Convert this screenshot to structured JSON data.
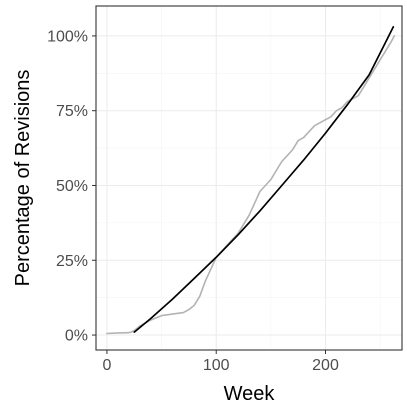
{
  "chart_data": {
    "type": "line",
    "title": "",
    "xlabel": "Week",
    "ylabel": "Percentage of Revisions",
    "xlim": [
      -10,
      270
    ],
    "ylim": [
      -0.05,
      1.1
    ],
    "x_ticks": [
      0,
      100,
      200
    ],
    "x_tick_labels": [
      "0",
      "100",
      "200"
    ],
    "y_ticks": [
      0,
      0.25,
      0.5,
      0.75,
      1.0
    ],
    "y_tick_labels": [
      "0%",
      "25%",
      "50%",
      "75%",
      "100%"
    ],
    "grid": true,
    "legend": "none",
    "colors": {
      "observed": "#b3b3b3",
      "fit": "#000000",
      "grid": "#ebebeb",
      "panel_border": "#333333"
    },
    "series": [
      {
        "role": "observed",
        "x": [
          0,
          10,
          20,
          22,
          25,
          30,
          40,
          50,
          60,
          70,
          75,
          80,
          85,
          88,
          90,
          95,
          100,
          105,
          110,
          115,
          120,
          125,
          130,
          135,
          140,
          145,
          150,
          155,
          160,
          165,
          170,
          175,
          180,
          185,
          190,
          195,
          200,
          205,
          210,
          215,
          220,
          225,
          230,
          235,
          240,
          245,
          250,
          255,
          260,
          263
        ],
        "y": [
          0.005,
          0.007,
          0.008,
          0.01,
          0.015,
          0.03,
          0.05,
          0.065,
          0.07,
          0.075,
          0.085,
          0.1,
          0.13,
          0.16,
          0.18,
          0.22,
          0.26,
          0.28,
          0.3,
          0.32,
          0.34,
          0.37,
          0.4,
          0.44,
          0.48,
          0.5,
          0.52,
          0.55,
          0.58,
          0.6,
          0.62,
          0.65,
          0.66,
          0.68,
          0.7,
          0.71,
          0.72,
          0.73,
          0.75,
          0.76,
          0.78,
          0.79,
          0.8,
          0.83,
          0.86,
          0.89,
          0.92,
          0.95,
          0.98,
          1.0
        ]
      },
      {
        "role": "fit",
        "x": [
          25,
          40,
          60,
          80,
          100,
          120,
          140,
          160,
          180,
          200,
          220,
          240,
          262
        ],
        "y": [
          0.01,
          0.055,
          0.12,
          0.19,
          0.26,
          0.335,
          0.415,
          0.5,
          0.585,
          0.675,
          0.77,
          0.87,
          1.03
        ]
      }
    ]
  }
}
